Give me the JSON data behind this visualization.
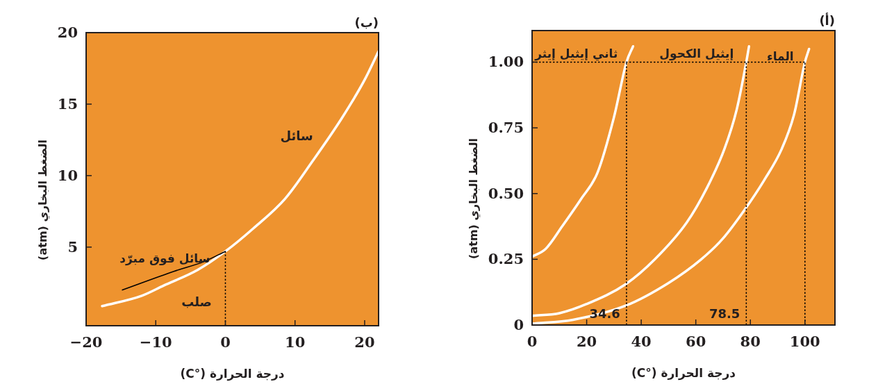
{
  "chart_data": [
    {
      "type": "line",
      "title": "(أ)",
      "xlabel": "درجة الحرارة (°C)",
      "ylabel": "الضغط البخاري (atm)",
      "xlim": [
        0,
        111
      ],
      "ylim": [
        0,
        1.12
      ],
      "xticks": [
        0,
        20,
        40,
        60,
        80,
        100
      ],
      "yticks": [
        0,
        0.25,
        {
          "value": 0.5,
          "label": "0.50"
        },
        0.75,
        {
          "value": 1,
          "label": "1.00"
        }
      ],
      "series": [
        {
          "name": "ثاني إيثيل إيثر",
          "color": "#ffffff",
          "x": [
            0,
            5,
            11,
            18,
            24,
            30,
            34.6,
            37
          ],
          "values": [
            0.26,
            0.29,
            0.375,
            0.48,
            0.58,
            0.79,
            1.0,
            1.06
          ]
        },
        {
          "name": "إيثيل الكحول",
          "color": "#ffffff",
          "x": [
            0,
            10,
            20,
            34.4,
            45,
            56.7,
            64,
            70.5,
            75,
            78.5,
            79.5
          ],
          "values": [
            0.035,
            0.045,
            0.08,
            0.156,
            0.25,
            0.39,
            0.52,
            0.67,
            0.82,
            1.0,
            1.06
          ]
        },
        {
          "name": "الماء",
          "color": "#ffffff",
          "x": [
            0,
            15,
            34.4,
            50,
            62,
            70,
            78,
            85,
            91.5,
            96,
            100,
            101.5
          ],
          "values": [
            0.005,
            0.02,
            0.074,
            0.16,
            0.25,
            0.33,
            0.44,
            0.55,
            0.67,
            0.8,
            1.0,
            1.05
          ]
        },
        {
          "color": "#000000",
          "line_style": "dotted",
          "x": [
            0,
            100
          ],
          "values": [
            1,
            1
          ]
        },
        {
          "color": "#000000",
          "line_style": "dotted",
          "x": [
            34.6,
            34.6
          ],
          "values": [
            0,
            1
          ]
        },
        {
          "color": "#000000",
          "line_style": "dotted",
          "x": [
            78.5,
            78.5
          ],
          "values": [
            0,
            1
          ]
        },
        {
          "color": "#000000",
          "line_style": "dotted",
          "x": [
            100,
            100
          ],
          "values": [
            0,
            1
          ]
        }
      ],
      "annotations": [
        {
          "text": "34.6",
          "x": 34.6,
          "y": 0
        },
        {
          "text": "78.5",
          "x": 78.5,
          "y": 0
        }
      ]
    },
    {
      "type": "line",
      "title": "(ب)",
      "xlabel": "درجة الحرارة (°C)",
      "ylabel": "الضغط البخاري (atm)",
      "xlim": [
        -20,
        22
      ],
      "ylim": [
        -0.5,
        20
      ],
      "xticks": [
        {
          "value": -20,
          "label": "−20"
        },
        {
          "value": -10,
          "label": "−10"
        },
        0,
        10,
        20
      ],
      "yticks": [
        5,
        10,
        15,
        20
      ],
      "series": [
        {
          "color": "#ffffff",
          "x": [
            -17.7,
            -12,
            -8.9,
            -4,
            0,
            4,
            8.6,
            12.5,
            16.7,
            20,
            22
          ],
          "values": [
            0.87,
            1.6,
            2.3,
            3.4,
            4.7,
            6.3,
            8.4,
            11.0,
            14.0,
            16.7,
            18.7
          ]
        },
        {
          "name": "سائل فوق مبرّد",
          "color": "#000000",
          "x": [
            -14.8,
            -7.4,
            -3,
            0
          ],
          "values": [
            2.0,
            3.3,
            4.0,
            4.7
          ]
        },
        {
          "color": "#000000",
          "line_style": "dotted",
          "x": [
            0,
            0
          ],
          "values": [
            -0.5,
            4.7
          ]
        }
      ],
      "annotations": [
        {
          "text": "سائل",
          "x": 13.5,
          "y": 12.0
        },
        "صلب"
      ]
    }
  ]
}
